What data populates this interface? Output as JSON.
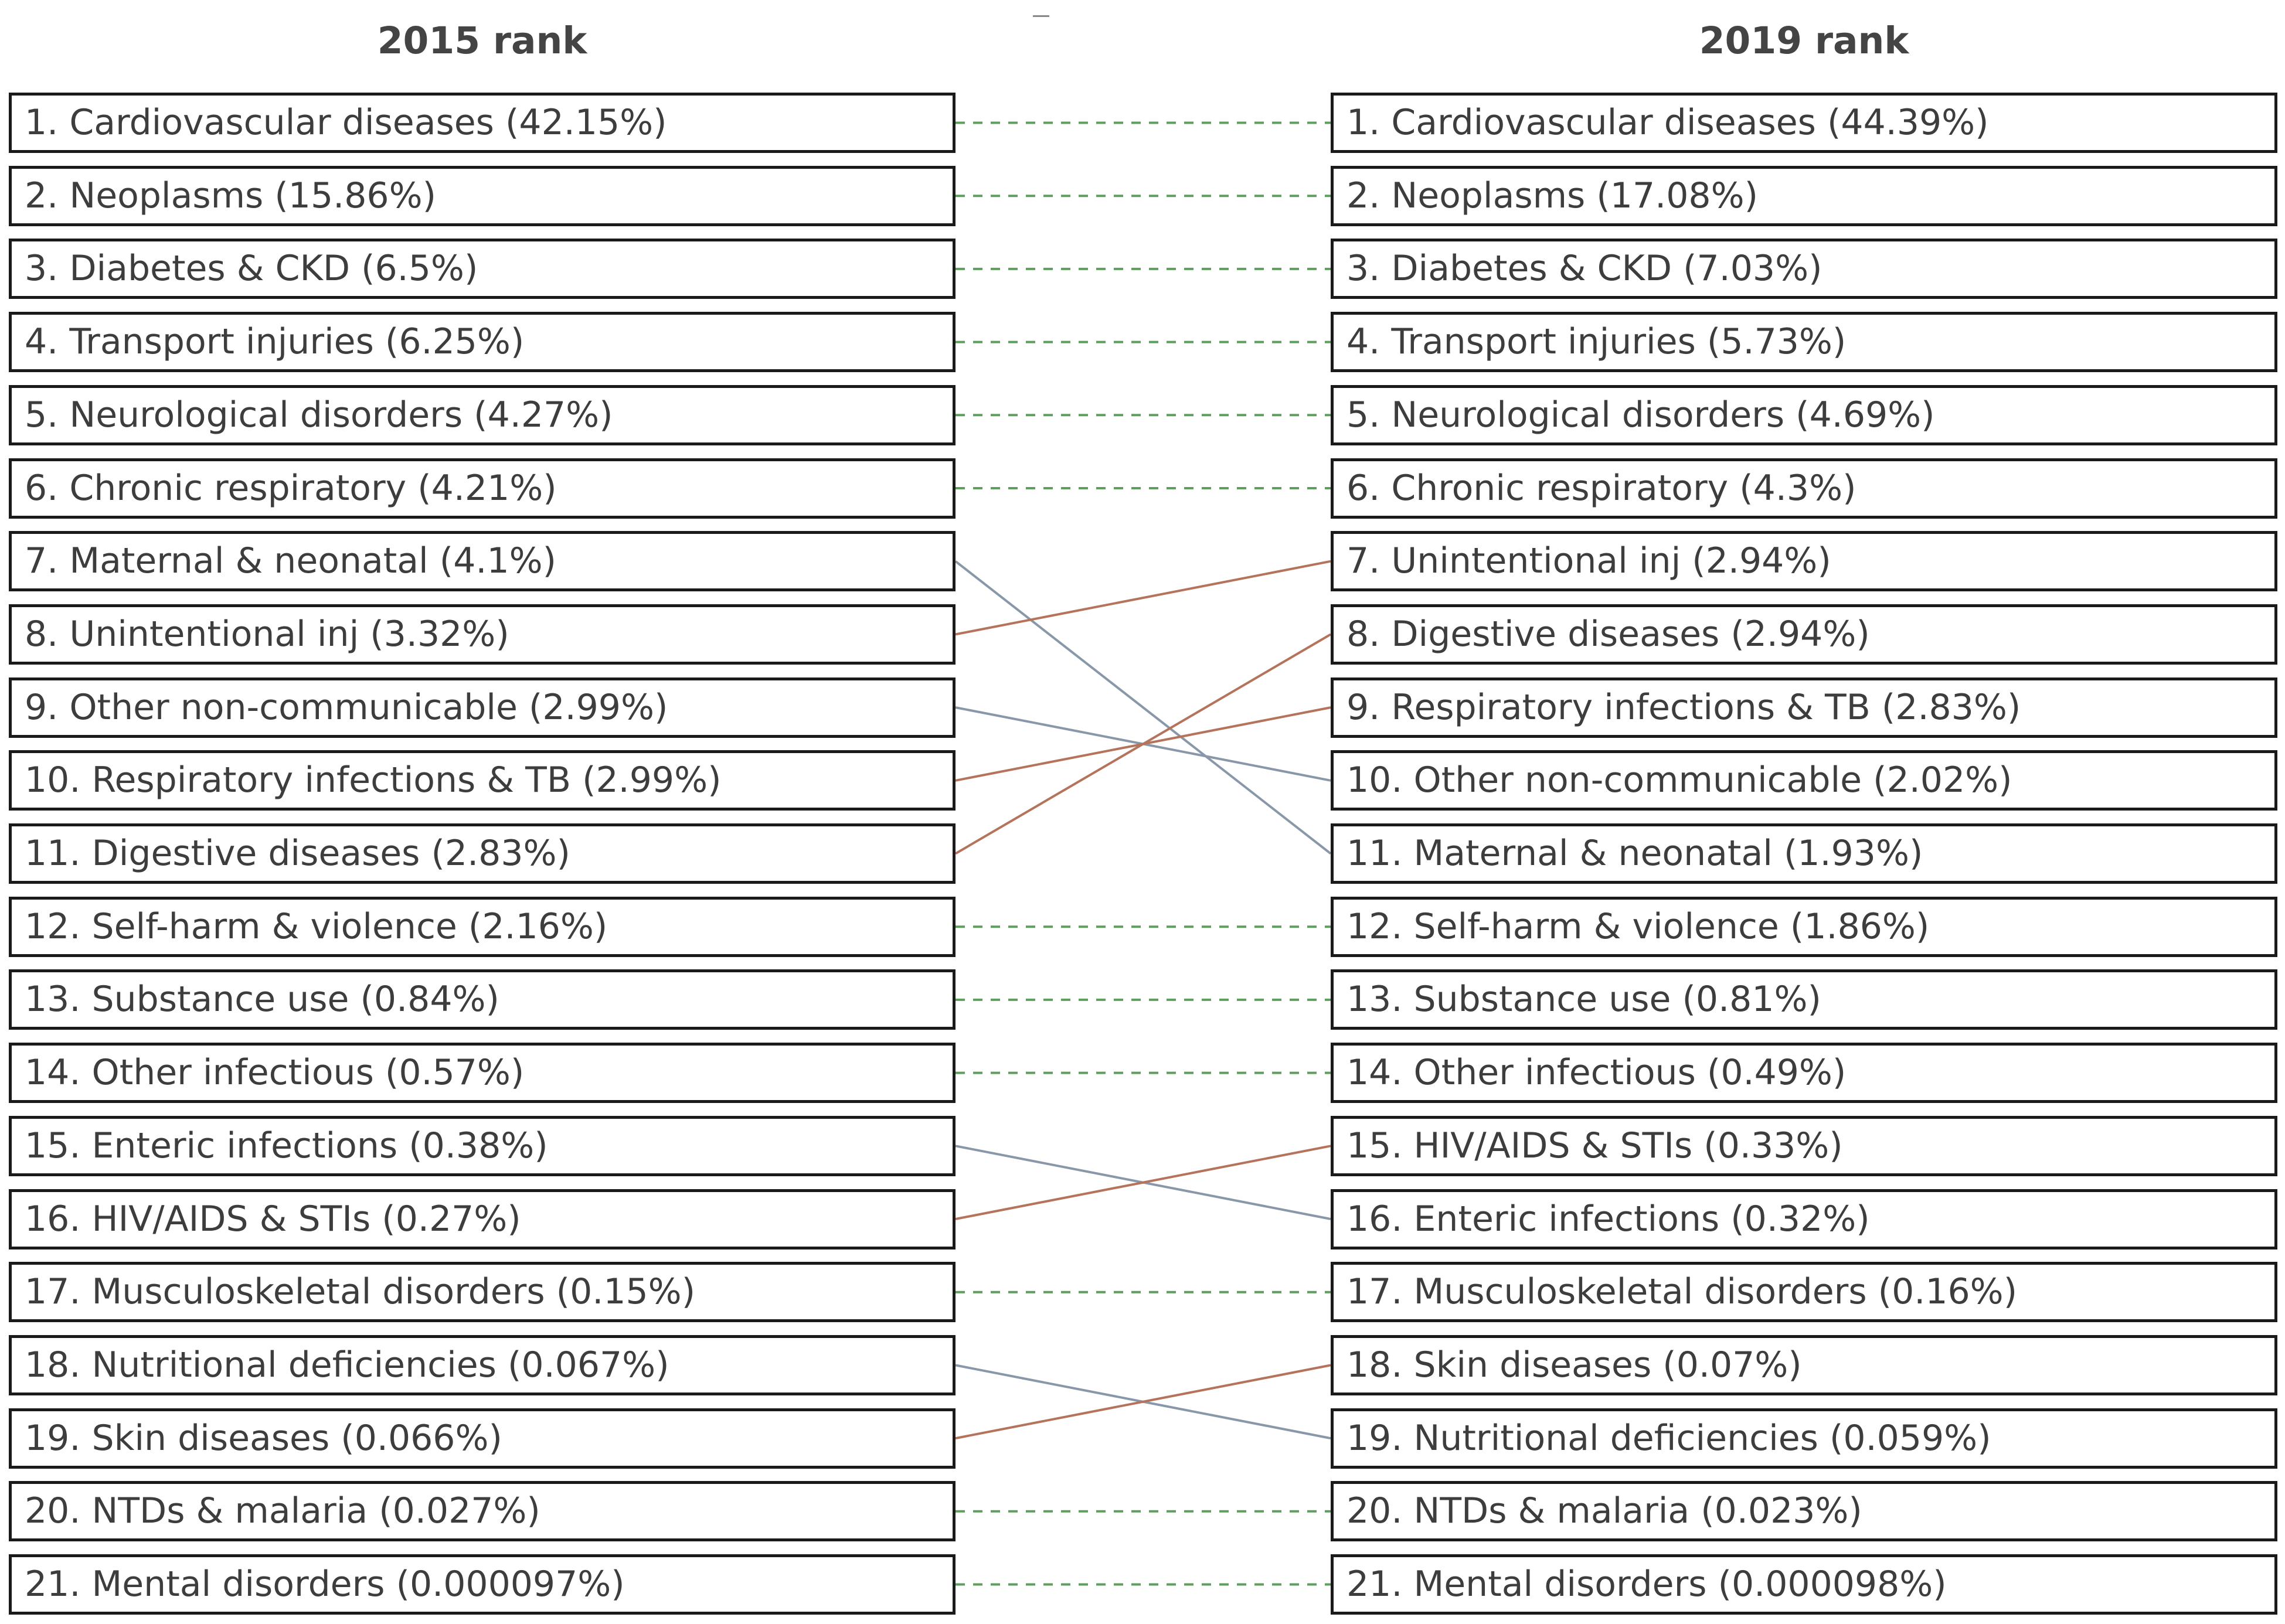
{
  "headers": {
    "left": "2015 rank",
    "right": "2019 rank"
  },
  "colors": {
    "same": "#5f9e5f",
    "up": "#b5735c",
    "down": "#8898a8"
  },
  "ranks_2015": [
    "1. Cardiovascular diseases (42.15%)",
    "2. Neoplasms (15.86%)",
    "3. Diabetes & CKD (6.5%)",
    "4. Transport injuries (6.25%)",
    "5. Neurological disorders (4.27%)",
    "6. Chronic respiratory (4.21%)",
    "7. Maternal & neonatal (4.1%)",
    "8. Unintentional inj (3.32%)",
    "9. Other non-communicable (2.99%)",
    "10. Respiratory infections & TB (2.99%)",
    "11. Digestive diseases (2.83%)",
    "12. Self-harm & violence (2.16%)",
    "13. Substance use (0.84%)",
    "14. Other infectious (0.57%)",
    "15. Enteric infections (0.38%)",
    "16. HIV/AIDS & STIs (0.27%)",
    "17. Musculoskeletal disorders (0.15%)",
    "18. Nutritional deficiencies (0.067%)",
    "19. Skin diseases (0.066%)",
    "20. NTDs & malaria (0.027%)",
    "21. Mental disorders (0.000097%)"
  ],
  "ranks_2019": [
    "1. Cardiovascular diseases (44.39%)",
    "2. Neoplasms (17.08%)",
    "3. Diabetes & CKD (7.03%)",
    "4. Transport injuries (5.73%)",
    "5. Neurological disorders (4.69%)",
    "6. Chronic respiratory (4.3%)",
    "7. Unintentional inj (2.94%)",
    "8. Digestive diseases (2.94%)",
    "9. Respiratory infections & TB (2.83%)",
    "10. Other non-communicable (2.02%)",
    "11. Maternal & neonatal (1.93%)",
    "12. Self-harm & violence (1.86%)",
    "13. Substance use (0.81%)",
    "14. Other infectious (0.49%)",
    "15. HIV/AIDS & STIs (0.33%)",
    "16. Enteric infections (0.32%)",
    "17. Musculoskeletal disorders (0.16%)",
    "18. Skin diseases (0.07%)",
    "19. Nutritional deficiencies (0.059%)",
    "20. NTDs & malaria (0.023%)",
    "21. Mental disorders (0.000098%)"
  ],
  "links": [
    {
      "from": 1,
      "to": 1
    },
    {
      "from": 2,
      "to": 2
    },
    {
      "from": 3,
      "to": 3
    },
    {
      "from": 4,
      "to": 4
    },
    {
      "from": 5,
      "to": 5
    },
    {
      "from": 6,
      "to": 6
    },
    {
      "from": 7,
      "to": 11
    },
    {
      "from": 8,
      "to": 7
    },
    {
      "from": 9,
      "to": 10
    },
    {
      "from": 10,
      "to": 9
    },
    {
      "from": 11,
      "to": 8
    },
    {
      "from": 12,
      "to": 12
    },
    {
      "from": 13,
      "to": 13
    },
    {
      "from": 14,
      "to": 14
    },
    {
      "from": 15,
      "to": 16
    },
    {
      "from": 16,
      "to": 15
    },
    {
      "from": 17,
      "to": 17
    },
    {
      "from": 18,
      "to": 19
    },
    {
      "from": 19,
      "to": 18
    },
    {
      "from": 20,
      "to": 20
    },
    {
      "from": 21,
      "to": 21
    }
  ]
}
